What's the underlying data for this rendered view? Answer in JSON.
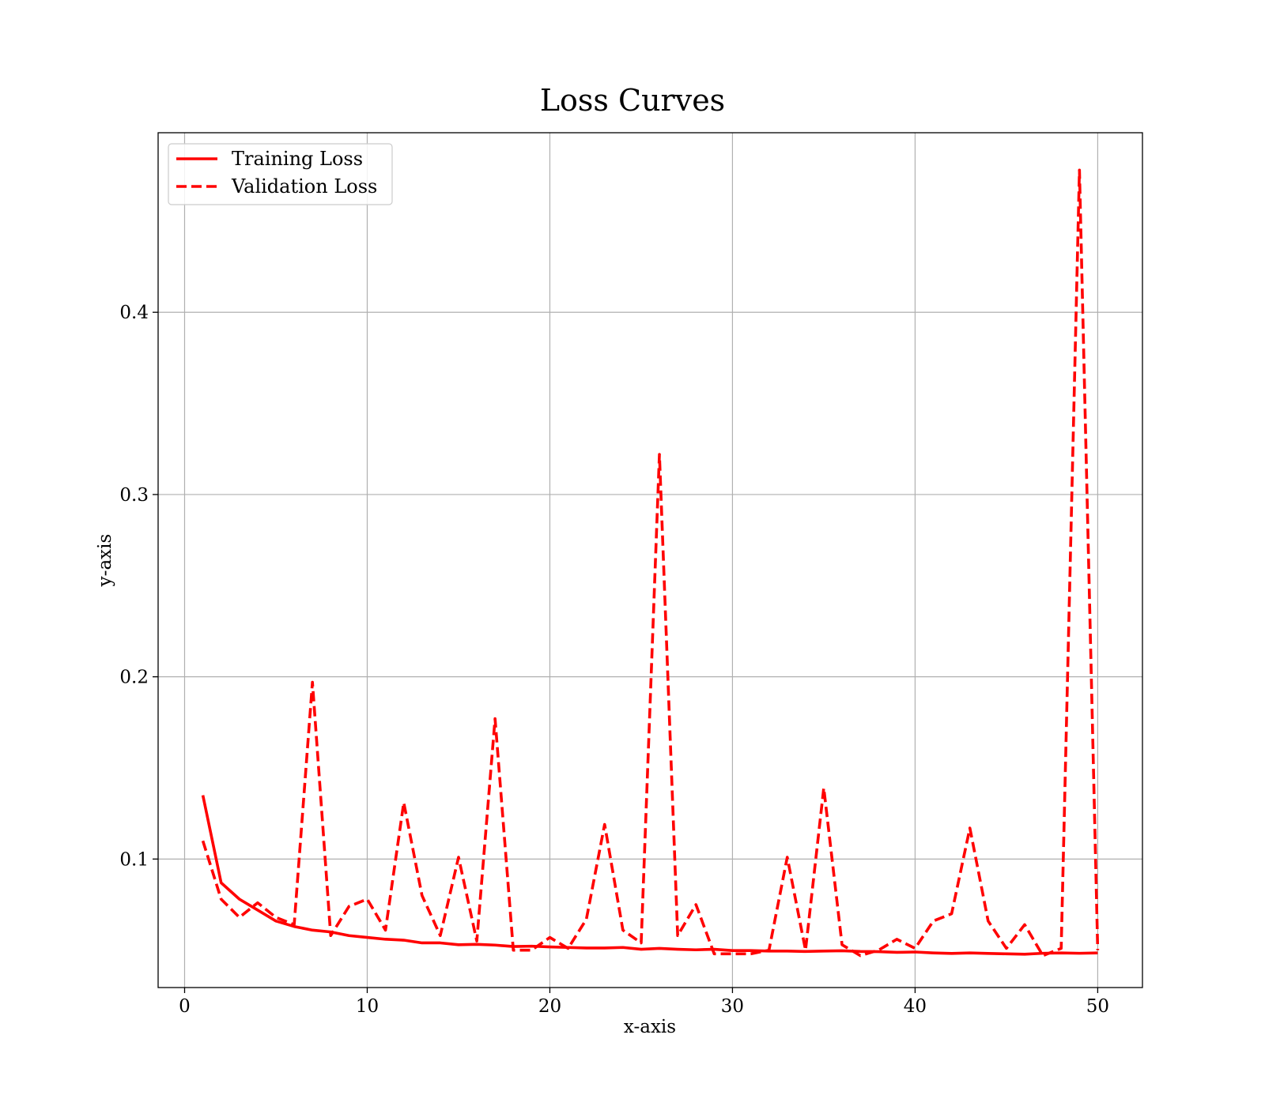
{
  "chart_data": {
    "type": "line",
    "title": "Loss Curves",
    "xlabel": "x-axis",
    "ylabel": "y-axis",
    "xlim": [
      -1.45,
      52.45
    ],
    "ylim": [
      0.0295,
      0.4985
    ],
    "x_ticks": [
      0,
      10,
      20,
      30,
      40,
      50
    ],
    "y_ticks": [
      0.1,
      0.2,
      0.3,
      0.4
    ],
    "x_tick_labels": [
      "0",
      "10",
      "20",
      "30",
      "40",
      "50"
    ],
    "y_tick_labels": [
      "0.1",
      "0.2",
      "0.3",
      "0.4"
    ],
    "grid": true,
    "legend_position": "upper-left",
    "x": [
      1,
      2,
      3,
      4,
      5,
      6,
      7,
      8,
      9,
      10,
      11,
      12,
      13,
      14,
      15,
      16,
      17,
      18,
      19,
      20,
      21,
      22,
      23,
      24,
      25,
      26,
      27,
      28,
      29,
      30,
      31,
      32,
      33,
      34,
      35,
      36,
      37,
      38,
      39,
      40,
      41,
      42,
      43,
      44,
      45,
      46,
      47,
      48,
      49,
      50
    ],
    "series": [
      {
        "name": "Training Loss",
        "color": "#ff0000",
        "style": "solid",
        "values": [
          0.135,
          0.087,
          0.078,
          0.072,
          0.066,
          0.063,
          0.061,
          0.06,
          0.058,
          0.057,
          0.056,
          0.0555,
          0.054,
          0.054,
          0.053,
          0.0532,
          0.0528,
          0.052,
          0.0522,
          0.0518,
          0.0515,
          0.0512,
          0.0512,
          0.0515,
          0.0505,
          0.051,
          0.0505,
          0.0502,
          0.0505,
          0.0498,
          0.0498,
          0.0495,
          0.0495,
          0.0493,
          0.0495,
          0.0497,
          0.0493,
          0.0492,
          0.0488,
          0.049,
          0.0485,
          0.0482,
          0.0485,
          0.0482,
          0.048,
          0.0478,
          0.0483,
          0.0485,
          0.0483,
          0.0485
        ]
      },
      {
        "name": "Validation Loss",
        "color": "#ff0000",
        "style": "dashed",
        "values": [
          0.11,
          0.078,
          0.068,
          0.076,
          0.068,
          0.064,
          0.197,
          0.058,
          0.074,
          0.078,
          0.061,
          0.131,
          0.08,
          0.058,
          0.101,
          0.055,
          0.177,
          0.05,
          0.05,
          0.057,
          0.051,
          0.067,
          0.119,
          0.061,
          0.054,
          0.322,
          0.058,
          0.075,
          0.048,
          0.048,
          0.048,
          0.05,
          0.101,
          0.05,
          0.139,
          0.053,
          0.047,
          0.05,
          0.056,
          0.051,
          0.066,
          0.07,
          0.117,
          0.066,
          0.051,
          0.064,
          0.047,
          0.051,
          0.478,
          0.05
        ]
      }
    ]
  }
}
